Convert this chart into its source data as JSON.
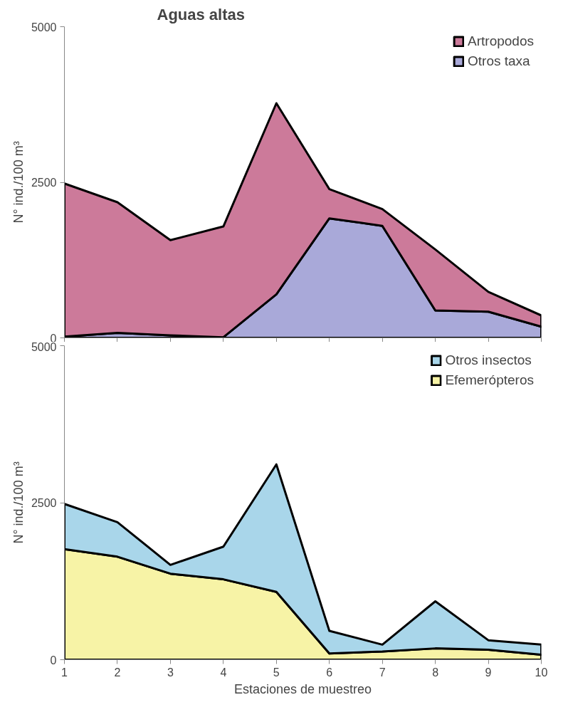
{
  "chart_data": [
    {
      "type": "area",
      "title": "Aguas altas",
      "ylabel": "N° ind./100 m³",
      "stacked": true,
      "x": [
        1,
        2,
        3,
        4,
        5,
        6,
        7,
        8,
        9,
        10
      ],
      "xlim": [
        1,
        10
      ],
      "xticks": [
        1,
        2,
        3,
        4,
        5,
        6,
        7,
        8,
        9,
        10
      ],
      "ylim": [
        0,
        5000
      ],
      "yticks": [
        0,
        2500,
        5000
      ],
      "tick_labels": "y",
      "legend": "top right",
      "grid": false,
      "series": [
        {
          "name": "Otros taxa",
          "color": "#a9a9d9",
          "values": [
            20,
            80,
            40,
            10,
            700,
            1920,
            1800,
            440,
            420,
            180
          ]
        },
        {
          "name": "Artropodos",
          "color": "#cc7a9a",
          "values": [
            2460,
            2100,
            1530,
            1780,
            3070,
            470,
            270,
            980,
            320,
            180
          ]
        }
      ]
    },
    {
      "type": "area",
      "ylabel": "N° ind./100 m³",
      "xlabel": "Estaciones de muestreo",
      "stacked": true,
      "x": [
        1,
        2,
        3,
        4,
        5,
        6,
        7,
        8,
        9,
        10
      ],
      "xlim": [
        1,
        10
      ],
      "xticks": [
        1,
        2,
        3,
        4,
        5,
        6,
        7,
        8,
        9,
        10
      ],
      "ylim": [
        0,
        5000
      ],
      "yticks": [
        0,
        2500,
        5000
      ],
      "legend": "top right",
      "grid": false,
      "series": [
        {
          "name": "Efemerópteros",
          "color": "#f7f3a6",
          "values": [
            1760,
            1640,
            1370,
            1280,
            1080,
            100,
            130,
            180,
            160,
            80
          ]
        },
        {
          "name": "Otros insectos",
          "color": "#a9d6ea",
          "values": [
            720,
            550,
            140,
            520,
            2030,
            360,
            110,
            750,
            150,
            160
          ]
        }
      ]
    }
  ]
}
